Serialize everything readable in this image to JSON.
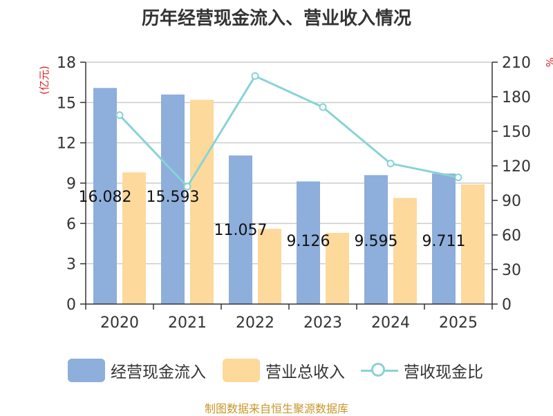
{
  "title": "历年经营现金流入、营业收入情况",
  "source": "制图数据来自恒生聚源数据库",
  "colors": {
    "bar_cash": "#8eaedb",
    "bar_revenue": "#fdd99b",
    "line_ratio": "#87d3d6",
    "axis_left_label": "#dd2222",
    "title": "#333333",
    "source": "#c8962a"
  },
  "legend": [
    {
      "label": "经营现金流入",
      "icon": "blue-bar-swatch"
    },
    {
      "label": "营业总收入",
      "icon": "orange-bar-swatch"
    },
    {
      "label": "营收现金比",
      "icon": "line-with-circle-marker"
    }
  ],
  "chart_data": {
    "type": "bar",
    "title": "历年经营现金流入、营业收入情况",
    "categories": [
      "2020",
      "2021",
      "2022",
      "2023",
      "2024",
      "2025"
    ],
    "series": [
      {
        "name": "经营现金流入",
        "type": "bar",
        "axis": "left",
        "values": [
          16.082,
          15.593,
          11.057,
          9.126,
          9.595,
          9.711
        ],
        "data_labels": [
          "16.082",
          "15.593",
          "11.057",
          "9.126",
          "9.595",
          "9.711"
        ]
      },
      {
        "name": "营业总收入",
        "type": "bar",
        "axis": "left",
        "values": [
          9.8,
          15.2,
          5.6,
          5.3,
          7.9,
          8.9
        ]
      },
      {
        "name": "营收现金比",
        "type": "line",
        "axis": "right",
        "values": [
          164,
          102,
          198,
          171,
          122,
          110
        ]
      }
    ],
    "y_left": {
      "label": "(亿元)",
      "ticks": [
        0,
        3,
        6,
        9,
        12,
        15,
        18
      ],
      "range": [
        0,
        18
      ]
    },
    "y_right": {
      "label": "%",
      "ticks": [
        0,
        30,
        60,
        90,
        120,
        150,
        180,
        210
      ],
      "range": [
        0,
        210
      ]
    },
    "grid": true,
    "legend_position": "bottom"
  }
}
